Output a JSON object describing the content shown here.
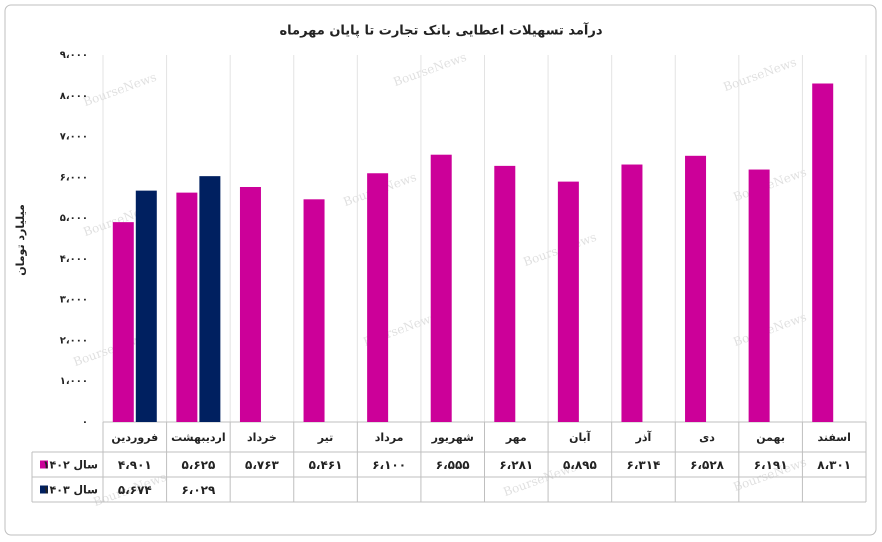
{
  "chart_data": {
    "type": "bar",
    "title": "درآمد تسهیلات اعطایی بانک تجارت تا پایان مهرماه",
    "y_label": "میلیارد تومان",
    "watermark": "BourseNews",
    "categories": [
      "فروردین",
      "اردیبهشت",
      "خرداد",
      "تیر",
      "مرداد",
      "شهریور",
      "مهر",
      "آبان",
      "آذر",
      "دی",
      "بهمن",
      "اسفند"
    ],
    "series": [
      {
        "name": "سال ۱۴۰۲",
        "color": "#cc0099",
        "values": [
          4901,
          5625,
          5763,
          5461,
          6100,
          6555,
          6281,
          5895,
          6314,
          6528,
          6191,
          8301
        ],
        "value_labels": [
          "۴،۹۰۱",
          "۵،۶۲۵",
          "۵،۷۶۳",
          "۵،۴۶۱",
          "۶،۱۰۰",
          "۶،۵۵۵",
          "۶،۲۸۱",
          "۵،۸۹۵",
          "۶،۳۱۴",
          "۶،۵۲۸",
          "۶،۱۹۱",
          "۸،۳۰۱"
        ]
      },
      {
        "name": "سال ۱۴۰۳",
        "color": "#002060",
        "values": [
          5674,
          6029,
          null,
          null,
          null,
          null,
          null,
          null,
          null,
          null,
          null,
          null
        ],
        "value_labels": [
          "۵،۶۷۴",
          "۶،۰۲۹",
          null,
          null,
          null,
          null,
          null,
          null,
          null,
          null,
          null,
          null
        ]
      }
    ],
    "ylim": [
      0,
      9000
    ],
    "yticks": [
      {
        "value": 0,
        "label": "۰"
      },
      {
        "value": 1000,
        "label": "۱،۰۰۰"
      },
      {
        "value": 2000,
        "label": "۲،۰۰۰"
      },
      {
        "value": 3000,
        "label": "۳،۰۰۰"
      },
      {
        "value": 4000,
        "label": "۴،۰۰۰"
      },
      {
        "value": 5000,
        "label": "۵،۰۰۰"
      },
      {
        "value": 6000,
        "label": "۶،۰۰۰"
      },
      {
        "value": 7000,
        "label": "۷،۰۰۰"
      },
      {
        "value": 8000,
        "label": "۸،۰۰۰"
      },
      {
        "value": 9000,
        "label": "۹،۰۰۰"
      }
    ]
  }
}
